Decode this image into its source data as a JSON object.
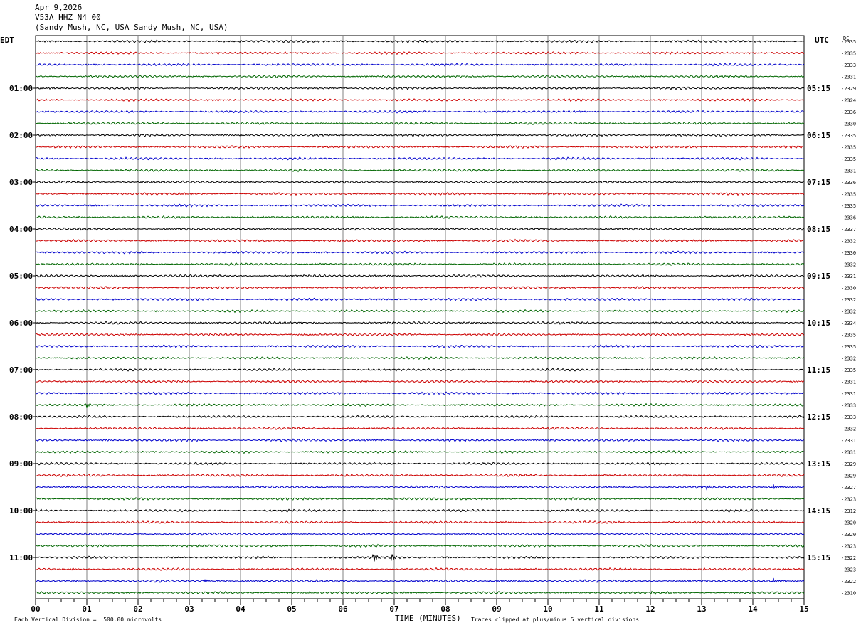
{
  "header": {
    "date": "Apr 9,2026",
    "station": "V53A HHZ N4 00",
    "location": "(Sandy Mush, NC, USA Sandy Mush, NC, USA)"
  },
  "left_zone": "EDT",
  "right_zone": "UTC",
  "dc_label": "DC",
  "footer": {
    "scale": "Each Vertical Division =  500.00 microvolts",
    "clip": "Traces clipped at plus/minus 5 vertical divisions",
    "xtitle": "TIME (MINUTES)"
  },
  "colors": {
    "trace_cycle": [
      "#000000",
      "#cc0000",
      "#0000cc",
      "#006600"
    ],
    "grid": "#000000"
  },
  "chart_data": {
    "type": "line",
    "title": "V53A HHZ N4 00",
    "xlabel": "TIME (MINUTES)",
    "xlim": [
      0,
      15
    ],
    "x_ticks": [
      "00",
      "01",
      "02",
      "03",
      "04",
      "05",
      "06",
      "07",
      "08",
      "09",
      "10",
      "11",
      "12",
      "13",
      "14",
      "15"
    ],
    "left_hour_labels": [
      "01:00",
      "02:00",
      "03:00",
      "04:00",
      "05:00",
      "06:00",
      "07:00",
      "08:00",
      "09:00",
      "10:00",
      "11:00"
    ],
    "right_hour_labels": [
      "05:15",
      "06:15",
      "07:15",
      "08:15",
      "09:15",
      "10:15",
      "11:15",
      "12:15",
      "13:15",
      "14:15",
      "15:15"
    ],
    "trace_count": 48,
    "dc_offsets": [
      "-2335",
      "-2335",
      "-2333",
      "-2331",
      "-2329",
      "-2324",
      "-2336",
      "-2330",
      "-2335",
      "-2335",
      "-2335",
      "-2331",
      "-2336",
      "-2335",
      "-2335",
      "-2336",
      "-2337",
      "-2332",
      "-2330",
      "-2332",
      "-2331",
      "-2330",
      "-2332",
      "-2332",
      "-2334",
      "-2335",
      "-2335",
      "-2332",
      "-2335",
      "-2331",
      "-2331",
      "-2333",
      "-2333",
      "-2332",
      "-2331",
      "-2331",
      "-2329",
      "-2329",
      "-2327",
      "-2323",
      "-2312",
      "-2320",
      "-2320",
      "-2323",
      "-2322",
      "-2323",
      "-2322",
      "-2310"
    ],
    "events": [
      {
        "trace": 31,
        "minute": 1.0,
        "amplitude": 3
      },
      {
        "trace": 38,
        "minute": 13.1,
        "amplitude": 3
      },
      {
        "trace": 38,
        "minute": 14.4,
        "amplitude": 4
      },
      {
        "trace": 44,
        "minute": 6.6,
        "amplitude": 6
      },
      {
        "trace": 44,
        "minute": 6.95,
        "amplitude": 5
      },
      {
        "trace": 46,
        "minute": 3.3,
        "amplitude": 2
      },
      {
        "trace": 46,
        "minute": 14.4,
        "amplitude": 4
      },
      {
        "trace": 47,
        "minute": 12.0,
        "amplitude": 2
      }
    ]
  }
}
